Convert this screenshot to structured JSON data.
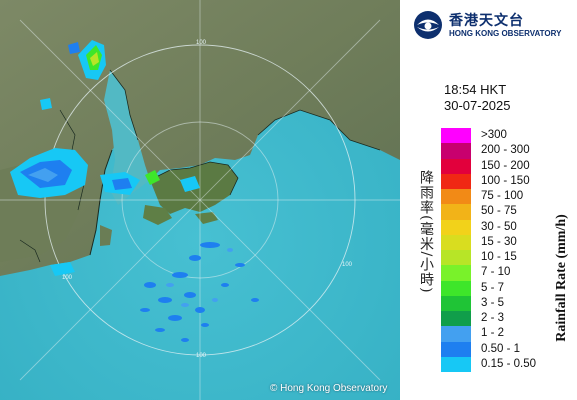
{
  "map": {
    "copyright": "© Hong Kong Observatory",
    "range_ring_label": "100"
  },
  "header": {
    "logo_chinese": "香港天文台",
    "logo_english": "HONG KONG OBSERVATORY"
  },
  "timestamp": {
    "time": "18:54 HKT",
    "date": "30-07-2025"
  },
  "legend": {
    "title_chinese": "降雨率(毫米/小時)",
    "title_english": "Rainfall Rate (mm/h)",
    "items": [
      {
        "label": ">300",
        "color": "#ff00ff"
      },
      {
        "label": "200 - 300",
        "color": "#c8006e"
      },
      {
        "label": "150 - 200",
        "color": "#e2003c"
      },
      {
        "label": "100 - 150",
        "color": "#f02814"
      },
      {
        "label": "75 - 100",
        "color": "#f28a16"
      },
      {
        "label": "50 - 75",
        "color": "#f2b318"
      },
      {
        "label": "30 - 50",
        "color": "#f2d21a"
      },
      {
        "label": "15 - 30",
        "color": "#d9dd1f"
      },
      {
        "label": "10 - 15",
        "color": "#b7e527"
      },
      {
        "label": "7 - 10",
        "color": "#79f22a"
      },
      {
        "label": "5 - 7",
        "color": "#3ee62a"
      },
      {
        "label": "3 - 5",
        "color": "#1fc436"
      },
      {
        "label": "2 - 3",
        "color": "#109e4a"
      },
      {
        "label": "1 - 2",
        "color": "#43a0f0"
      },
      {
        "label": "0.50 - 1",
        "color": "#1e7ff0"
      },
      {
        "label": "0.15 - 0.50",
        "color": "#17c8f5"
      }
    ]
  }
}
